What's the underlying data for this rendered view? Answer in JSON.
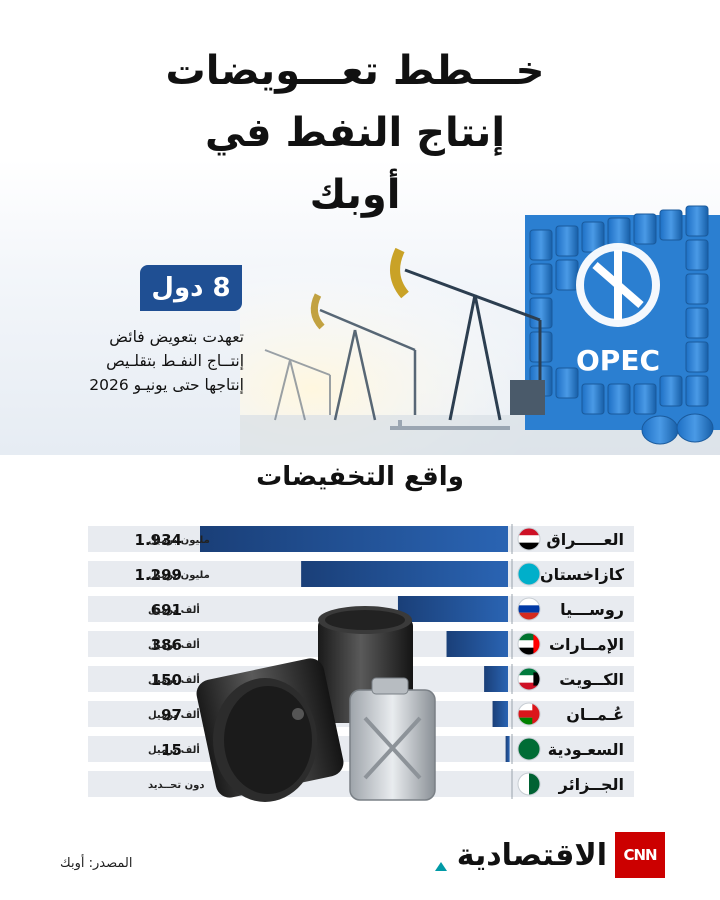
{
  "header": {
    "title_line1": "خـــطط تعـــويضات",
    "title_line2": "إنتاج النفط في أوبك"
  },
  "hero": {
    "badge": "8 دول",
    "description_lines": [
      "تعهدت بتعويض فائض",
      "إنتــاج النفـط بتقلـيص",
      "إنتاجها حتى يونيـو 2026"
    ],
    "logo_text": "OPEC"
  },
  "section_title": "واقع التخفيضات",
  "chart_data": {
    "type": "bar",
    "orientation": "horizontal",
    "categories": [
      "العـــــراق",
      "كازاخستان",
      "روســـيا",
      "الإمــارات",
      "الكــويت",
      "عُـمــان",
      "السعـودية",
      "الجــزائر"
    ],
    "values": [
      1934,
      1299,
      691,
      386,
      150,
      97,
      15,
      0
    ],
    "value_labels": [
      "1.934",
      "1.299",
      "691",
      "386",
      "150",
      "97",
      "15",
      ""
    ],
    "unit_labels": [
      "مليون برميل",
      "مليون برميل",
      "ألف برميل",
      "ألف برميل",
      "ألف برميل",
      "ألف برميل",
      "ألف برميل",
      "دون تحــديد"
    ],
    "flags": [
      "iraq-flag",
      "kazakhstan-flag",
      "russia-flag",
      "uae-flag",
      "kuwait-flag",
      "oman-flag",
      "saudi-flag",
      "algeria-flag"
    ],
    "xlim": [
      0,
      1934
    ],
    "bar_color": "#1f4f93",
    "grid": false
  },
  "footer": {
    "source": "المصدر: أوبك",
    "brand": "الاقتصادية",
    "cnn": "CNN"
  },
  "colors": {
    "accent": "#1f4f93",
    "cnn_red": "#cc0000"
  }
}
